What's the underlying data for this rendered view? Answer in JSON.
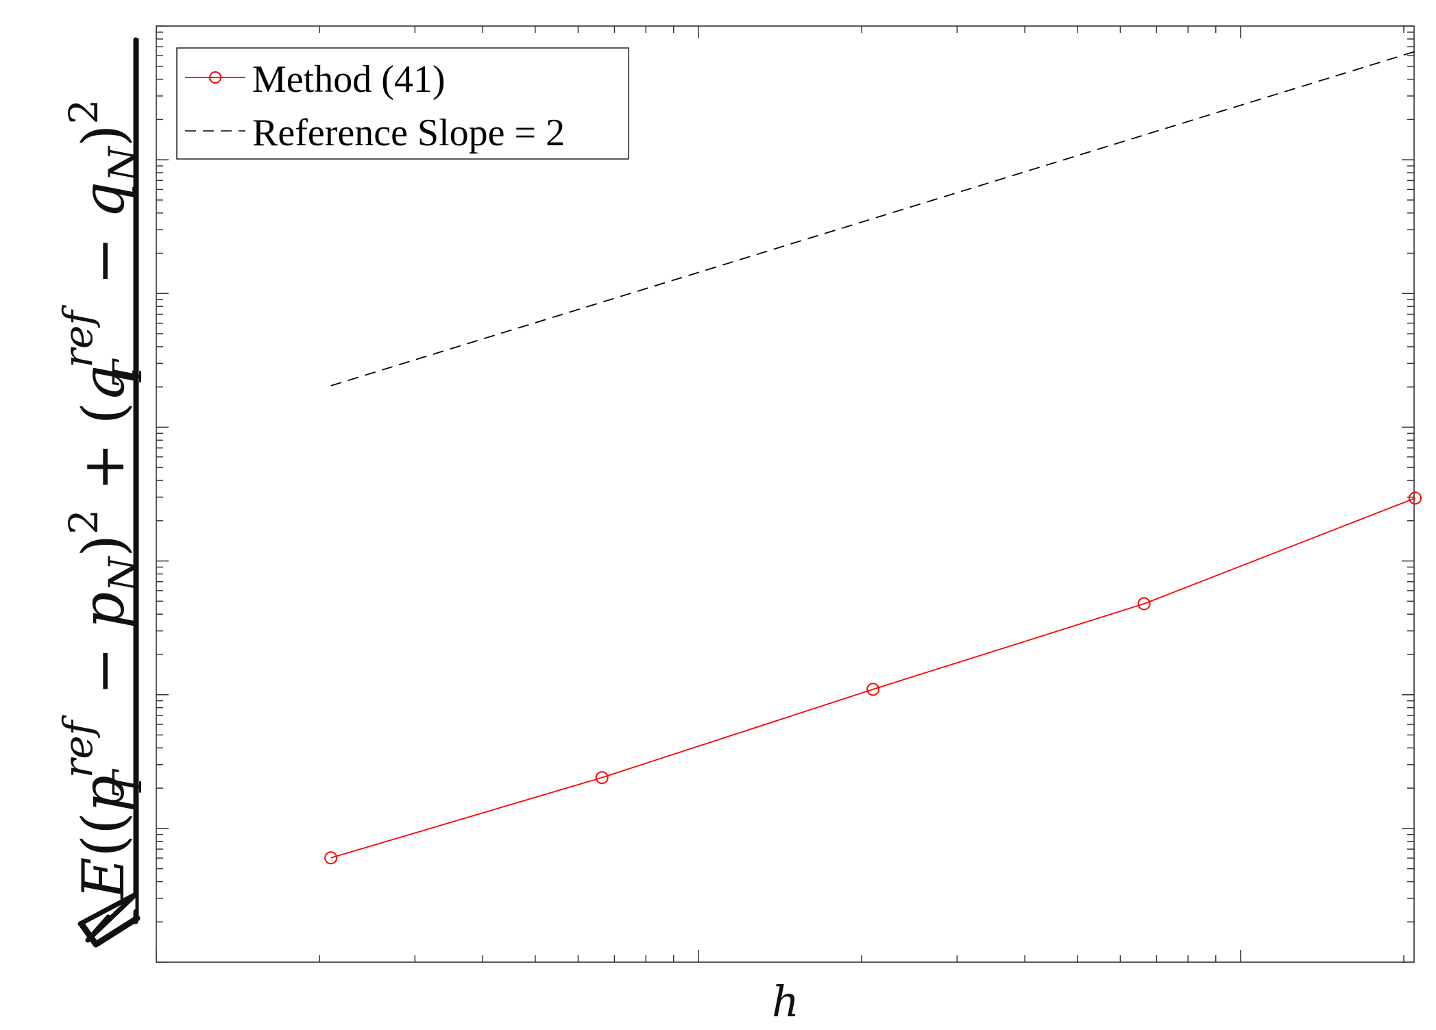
{
  "chart_data": {
    "type": "line",
    "xlabel": "h",
    "ylabel": {
      "E": "E",
      "p": "p",
      "q": "q",
      "ref": "ref",
      "T": "T",
      "N": "N",
      "sq": "2"
    },
    "x_scale": "log",
    "y_scale": "log",
    "xlim_decades": [
      0,
      2.32
    ],
    "ylim_decades": [
      0,
      7.0
    ],
    "grid": false,
    "legend_position": "top-left",
    "series": [
      {
        "name": "Method (41)",
        "color": "#ff0000",
        "line": "solid",
        "marker": "circle",
        "log_x": [
          0.322,
          0.822,
          1.322,
          1.822,
          2.322
        ],
        "log_y": [
          0.78,
          1.38,
          2.04,
          2.68,
          3.47
        ]
      },
      {
        "name": "Reference Slope = 2",
        "color": "#000000",
        "line": "dashed",
        "marker": "none",
        "log_x": [
          0.322,
          2.322
        ],
        "log_y": [
          4.31,
          6.81
        ]
      }
    ]
  }
}
